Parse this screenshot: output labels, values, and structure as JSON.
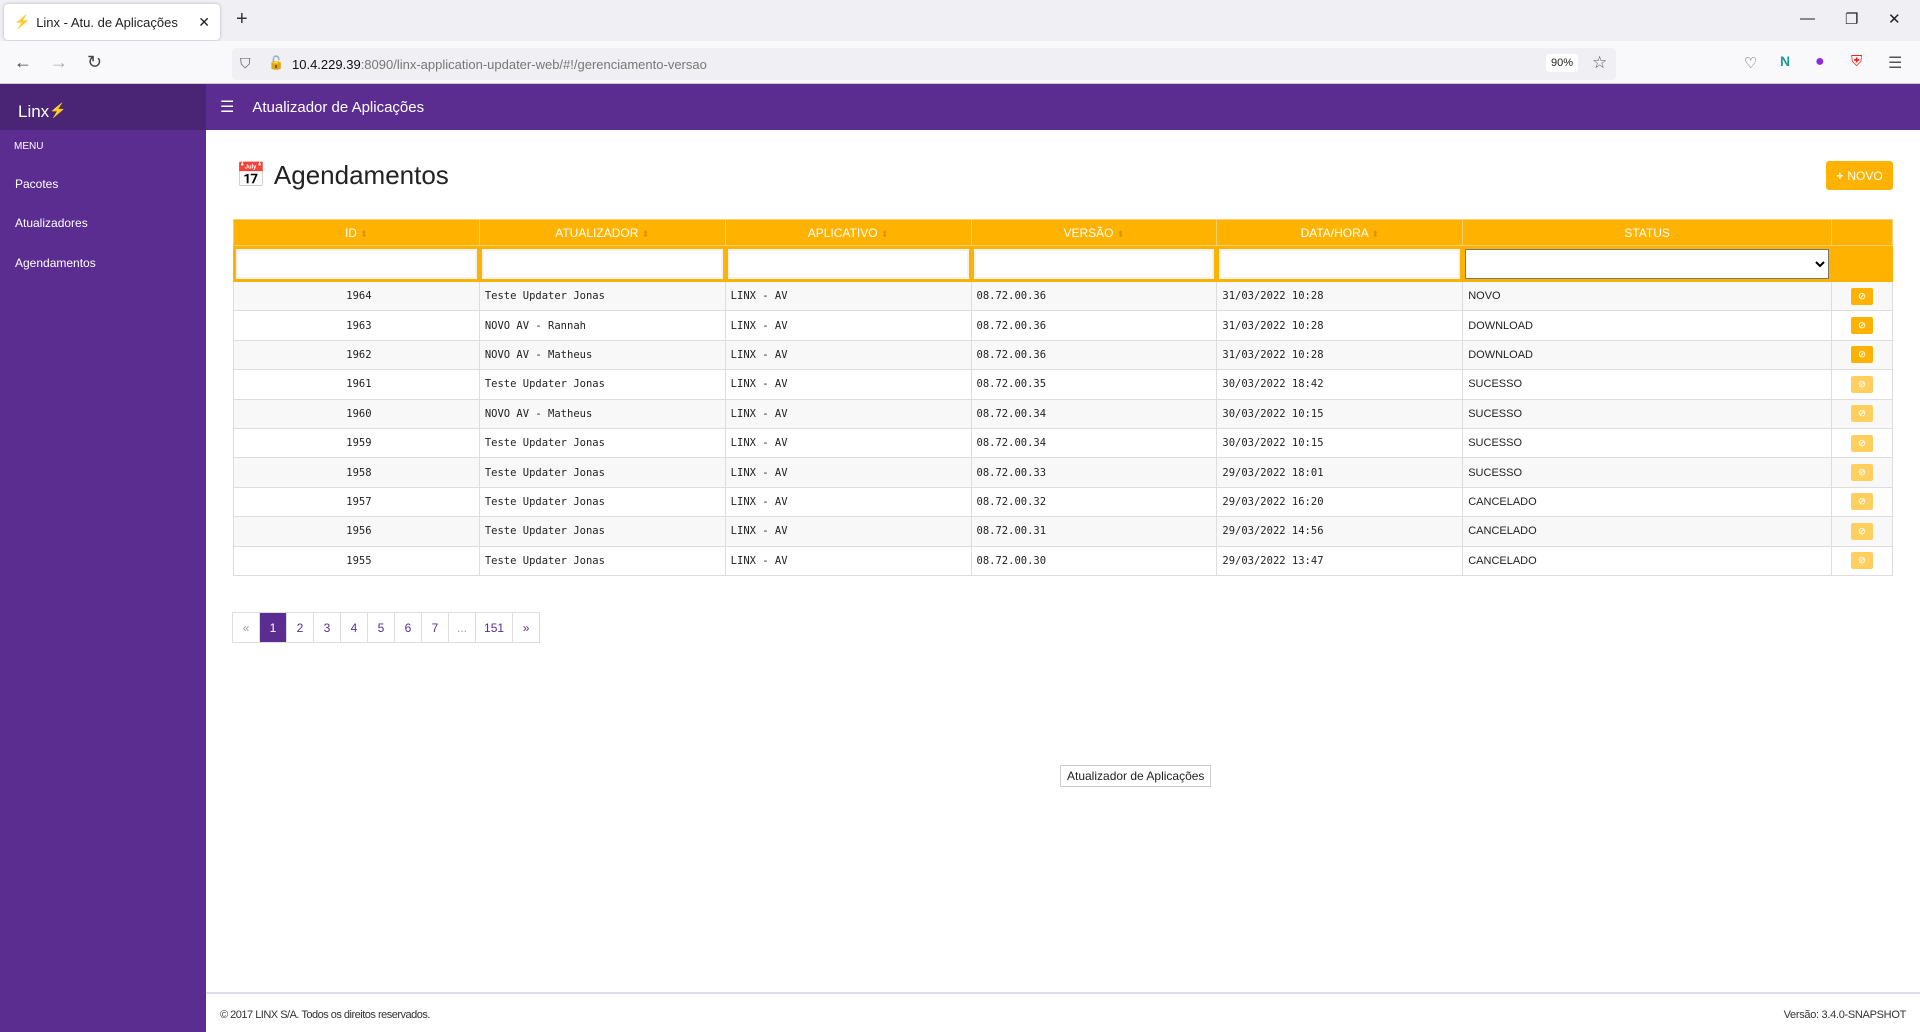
{
  "browser": {
    "tab_title": "Linx - Atu. de Aplicações",
    "url_host": "10.4.229.39",
    "url_rest": ":8090/linx-application-updater-web/#!/gerenciamento-versao",
    "zoom": "90%"
  },
  "app": {
    "logo": "Linx",
    "header_title": "Atualizador de Aplicações",
    "menu_label": "MENU",
    "sidebar": [
      {
        "label": "Pacotes"
      },
      {
        "label": "Atualizadores"
      },
      {
        "label": "Agendamentos"
      }
    ]
  },
  "page": {
    "title": "Agendamentos",
    "new_button": "NOVO"
  },
  "table": {
    "headers": [
      "ID",
      "ATUALIZADOR",
      "APLICATIVO",
      "VERSÃO",
      "DATA/HORA",
      "STATUS"
    ],
    "rows": [
      [
        "1964",
        "Teste Updater Jonas",
        "LINX - AV",
        "08.72.00.36",
        "31/03/2022 10:28",
        "NOVO"
      ],
      [
        "1963",
        "NOVO AV - Rannah",
        "LINX - AV",
        "08.72.00.36",
        "31/03/2022 10:28",
        "DOWNLOAD"
      ],
      [
        "1962",
        "NOVO AV - Matheus",
        "LINX - AV",
        "08.72.00.36",
        "31/03/2022 10:28",
        "DOWNLOAD"
      ],
      [
        "1961",
        "Teste Updater Jonas",
        "LINX - AV",
        "08.72.00.35",
        "30/03/2022 18:42",
        "SUCESSO"
      ],
      [
        "1960",
        "NOVO AV - Matheus",
        "LINX - AV",
        "08.72.00.34",
        "30/03/2022 10:15",
        "SUCESSO"
      ],
      [
        "1959",
        "Teste Updater Jonas",
        "LINX - AV",
        "08.72.00.34",
        "30/03/2022 10:15",
        "SUCESSO"
      ],
      [
        "1958",
        "Teste Updater Jonas",
        "LINX - AV",
        "08.72.00.33",
        "29/03/2022 18:01",
        "SUCESSO"
      ],
      [
        "1957",
        "Teste Updater Jonas",
        "LINX - AV",
        "08.72.00.32",
        "29/03/2022 16:20",
        "CANCELADO"
      ],
      [
        "1956",
        "Teste Updater Jonas",
        "LINX - AV",
        "08.72.00.31",
        "29/03/2022 14:56",
        "CANCELADO"
      ],
      [
        "1955",
        "Teste Updater Jonas",
        "LINX - AV",
        "08.72.00.30",
        "29/03/2022 13:47",
        "CANCELADO"
      ]
    ]
  },
  "pagination": [
    "«",
    "1",
    "2",
    "3",
    "4",
    "5",
    "6",
    "7",
    "...",
    "151",
    "»"
  ],
  "tooltip": "Atualizador de Aplicações",
  "footer": {
    "copyright": "© 2017 LINX S/A. Todos os direitos reservados.",
    "version": "Versão: 3.4.0-SNAPSHOT"
  },
  "colors": {
    "primary": "#5c2d91",
    "accent": "#ffb300"
  }
}
